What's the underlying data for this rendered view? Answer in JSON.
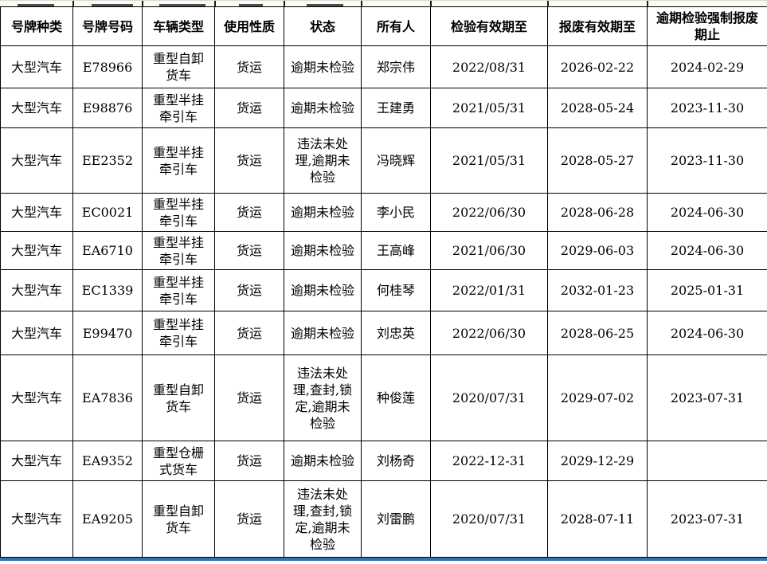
{
  "table": {
    "headers": [
      "号牌种类",
      "号牌号码",
      "车辆类型",
      "使用性质",
      "状态",
      "所有人",
      "检验有效期至",
      "报废有效期至",
      "逾期检验强制报废期止"
    ],
    "rows": [
      [
        "大型汽车",
        "E78966",
        "重型自卸货车",
        "货运",
        "逾期未检验",
        "郑宗伟",
        "2022/08/31",
        "2026-02-22",
        "2024-02-29"
      ],
      [
        "大型汽车",
        "E98876",
        "重型半挂牵引车",
        "货运",
        "逾期未检验",
        "王建勇",
        "2021/05/31",
        "2028-05-24",
        "2023-11-30"
      ],
      [
        "大型汽车",
        "EE2352",
        "重型半挂牵引车",
        "货运",
        "违法未处理,逾期未检验",
        "冯晓辉",
        "2021/05/31",
        "2028-05-27",
        "2023-11-30"
      ],
      [
        "大型汽车",
        "EC0021",
        "重型半挂牵引车",
        "货运",
        "逾期未检验",
        "李小民",
        "2022/06/30",
        "2028-06-28",
        "2024-06-30"
      ],
      [
        "大型汽车",
        "EA6710",
        "重型半挂牵引车",
        "货运",
        "逾期未检验",
        "王高峰",
        "2021/06/30",
        "2029-06-03",
        "2024-06-30"
      ],
      [
        "大型汽车",
        "EC1339",
        "重型半挂牵引车",
        "货运",
        "逾期未检验",
        "何桂琴",
        "2022/01/31",
        "2032-01-23",
        "2025-01-31"
      ],
      [
        "大型汽车",
        "E99470",
        "重型半挂牵引车",
        "货运",
        "逾期未检验",
        "刘忠英",
        "2022/06/30",
        "2028-06-25",
        "2024-06-30"
      ],
      [
        "大型汽车",
        "EA7836",
        "重型自卸货车",
        "货运",
        "违法未处理,查封,锁定,逾期未检验",
        "种俊莲",
        "2020/07/31",
        "2029-07-02",
        "2023-07-31"
      ],
      [
        "大型汽车",
        "EA9352",
        "重型仓栅式货车",
        "货运",
        "逾期未检验",
        "刘杨奇",
        "2022-12-31",
        "2029-12-29",
        ""
      ],
      [
        "大型汽车",
        "EA9205",
        "重型自卸货车",
        "货运",
        "违法未处理,查封,锁定,逾期未检验",
        "刘雷鹏",
        "2020/07/31",
        "2028-07-11",
        "2023-07-31"
      ]
    ],
    "border_color": "#000000",
    "text_color": "#000000"
  },
  "chrome": {
    "top_strip_color": "#fbfbef",
    "bottom_strip_color": "#2e75b6"
  }
}
